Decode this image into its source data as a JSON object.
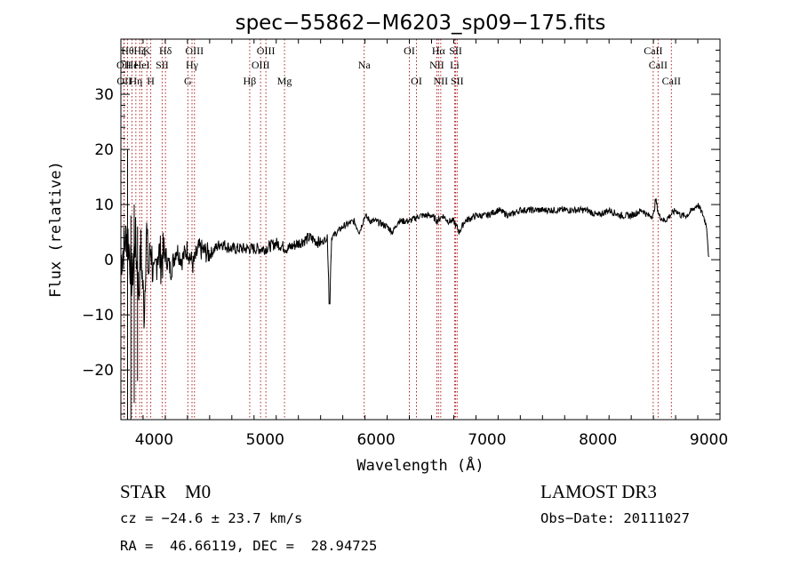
{
  "chart_data": {
    "type": "line",
    "title": "spec−55862−M6203_sp09−175.fits",
    "xlabel": "Wavelength (Å)",
    "ylabel": "Flux (relative)",
    "xlim": [
      3700,
      9100
    ],
    "ylim": [
      -29,
      40
    ],
    "xticks": [
      4000,
      5000,
      6000,
      7000,
      8000,
      9000
    ],
    "yticks": [
      -20,
      -10,
      0,
      10,
      20,
      30
    ],
    "ytick_labels": [
      "−20",
      "−10",
      "0",
      "10",
      "20",
      "30"
    ],
    "grid": false,
    "colors": {
      "spectrum": "#000000",
      "lines": "#b22222",
      "axes": "#000000"
    },
    "series": [
      {
        "name": "flux",
        "x": [
          3700,
          3760,
          3800,
          3830,
          3860,
          3880,
          3910,
          3930,
          3950,
          3970,
          4000,
          4030,
          4060,
          4100,
          4150,
          4200,
          4250,
          4300,
          4350,
          4400,
          4500,
          4600,
          4700,
          4800,
          4900,
          5000,
          5100,
          5200,
          5300,
          5400,
          5500,
          5560,
          5580,
          5600,
          5700,
          5800,
          5850,
          5900,
          5950,
          6000,
          6100,
          6150,
          6200,
          6300,
          6400,
          6500,
          6550,
          6600,
          6650,
          6700,
          6750,
          6800,
          6900,
          7000,
          7100,
          7200,
          7300,
          7400,
          7500,
          7600,
          7700,
          7800,
          7900,
          8000,
          8100,
          8200,
          8300,
          8400,
          8450,
          8500,
          8520,
          8550,
          8600,
          8650,
          8700,
          8750,
          8800,
          8850,
          8900,
          8950,
          8980,
          9000
        ],
        "y": [
          0,
          5,
          -4,
          4,
          -6,
          2,
          -10,
          6,
          -3,
          3,
          -5,
          2,
          0,
          1,
          -2,
          2,
          0,
          2,
          -1,
          2,
          1,
          3,
          2,
          2,
          2,
          2,
          3,
          2,
          3,
          4,
          3,
          4,
          -8,
          4,
          6,
          7,
          5,
          8,
          7,
          7,
          6,
          5,
          7,
          7,
          8,
          8,
          7,
          8,
          7,
          7,
          5,
          7,
          8,
          8,
          9,
          8,
          9,
          9,
          9,
          9,
          9,
          9,
          9,
          8,
          9,
          8,
          8,
          9,
          8,
          8,
          11,
          8,
          7,
          8,
          9,
          8,
          8,
          9,
          10,
          8,
          6,
          0
        ]
      }
    ],
    "lines": [
      {
        "wl": 3727,
        "label": "OII",
        "row": 2
      },
      {
        "wl": 3730,
        "label": "OII",
        "row": 3
      },
      {
        "wl": 3760,
        "label": "Hθ",
        "row": 1
      },
      {
        "wl": 3800,
        "label": "He",
        "row": 2
      },
      {
        "wl": 3835,
        "label": "Hη",
        "row": 3
      },
      {
        "wl": 3870,
        "label": "Hζ",
        "row": 1
      },
      {
        "wl": 3889,
        "label": "HeI",
        "row": 2
      },
      {
        "wl": 3934,
        "label": "K",
        "row": 1
      },
      {
        "wl": 3969,
        "label": "H",
        "row": 3
      },
      {
        "wl": 4072,
        "label": "SII",
        "row": 2
      },
      {
        "wl": 4102,
        "label": "Hδ",
        "row": 1
      },
      {
        "wl": 4304,
        "label": "G",
        "row": 3
      },
      {
        "wl": 4341,
        "label": "Hγ",
        "row": 2
      },
      {
        "wl": 4363,
        "label": "OIII",
        "row": 1
      },
      {
        "wl": 4861,
        "label": "Hβ",
        "row": 3
      },
      {
        "wl": 4959,
        "label": "OIII",
        "row": 2
      },
      {
        "wl": 5007,
        "label": "OIII",
        "row": 1
      },
      {
        "wl": 5175,
        "label": "Mg",
        "row": 3
      },
      {
        "wl": 5893,
        "label": "Na",
        "row": 2
      },
      {
        "wl": 6300,
        "label": "OI",
        "row": 1
      },
      {
        "wl": 6364,
        "label": "OI",
        "row": 3
      },
      {
        "wl": 6548,
        "label": "NII",
        "row": 2
      },
      {
        "wl": 6563,
        "label": "Hα",
        "row": 1
      },
      {
        "wl": 6583,
        "label": "NII",
        "row": 3
      },
      {
        "wl": 6708,
        "label": "Li",
        "row": 2
      },
      {
        "wl": 6717,
        "label": "SII",
        "row": 1
      },
      {
        "wl": 6731,
        "label": "SII",
        "row": 3
      },
      {
        "wl": 8498,
        "label": "CaII",
        "row": 1
      },
      {
        "wl": 8542,
        "label": "CaII",
        "row": 2
      },
      {
        "wl": 8662,
        "label": "CaII",
        "row": 3
      }
    ]
  },
  "info": {
    "class_line": "STAR    M0",
    "survey": "LAMOST DR3",
    "cz": "cz = −24.6 ± 23.7 km/s",
    "obs_date": "Obs−Date: 20111027",
    "radec": "RA =  46.66119, DEC =  28.94725"
  }
}
